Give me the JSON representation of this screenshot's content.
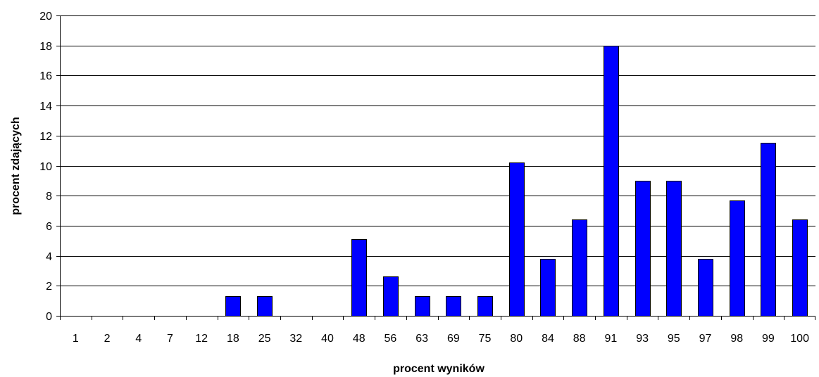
{
  "chart_data": {
    "type": "bar",
    "xlabel": "procent wyników",
    "ylabel": "procent zdających",
    "ylim": [
      0,
      20
    ],
    "yticks": [
      "0",
      "2",
      "4",
      "6",
      "8",
      "10",
      "12",
      "14",
      "16",
      "18",
      "20"
    ],
    "grid": true,
    "legend": "none",
    "bar_color": "#0000ff",
    "categories": [
      "1",
      "2",
      "4",
      "7",
      "12",
      "18",
      "25",
      "32",
      "40",
      "48",
      "56",
      "63",
      "69",
      "75",
      "80",
      "84",
      "88",
      "91",
      "93",
      "95",
      "97",
      "98",
      "99",
      "100"
    ],
    "values": [
      0,
      0,
      0,
      0,
      0,
      1.3,
      1.3,
      0,
      0,
      5.1,
      2.6,
      1.3,
      1.3,
      1.3,
      10.2,
      3.8,
      6.4,
      18,
      9,
      9,
      3.8,
      7.7,
      11.5,
      6.4
    ]
  }
}
